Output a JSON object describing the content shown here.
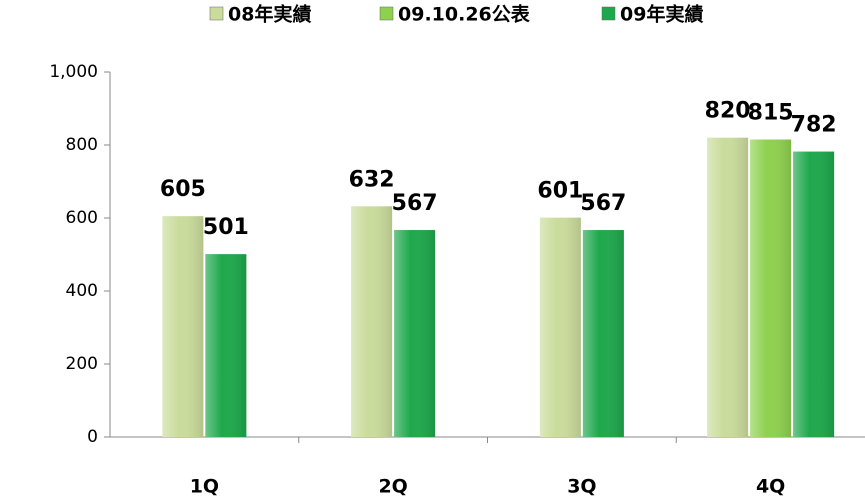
{
  "chart_data": {
    "type": "bar",
    "categories": [
      "1Q",
      "2Q",
      "3Q",
      "4Q"
    ],
    "series": [
      {
        "name": "08年実績",
        "color": "#cadc9c",
        "values": [
          605,
          632,
          601,
          820
        ]
      },
      {
        "name": "09.10.26公表",
        "color": "#8fd14f",
        "values": [
          null,
          null,
          null,
          815
        ]
      },
      {
        "name": "09年実績",
        "color": "#1ea84c",
        "values": [
          501,
          567,
          567,
          782
        ]
      }
    ],
    "ylim": [
      0,
      1000
    ],
    "yticks": [
      0,
      200,
      400,
      600,
      800,
      {
        "value": 1000,
        "label": "1,000"
      }
    ],
    "grid": false
  }
}
